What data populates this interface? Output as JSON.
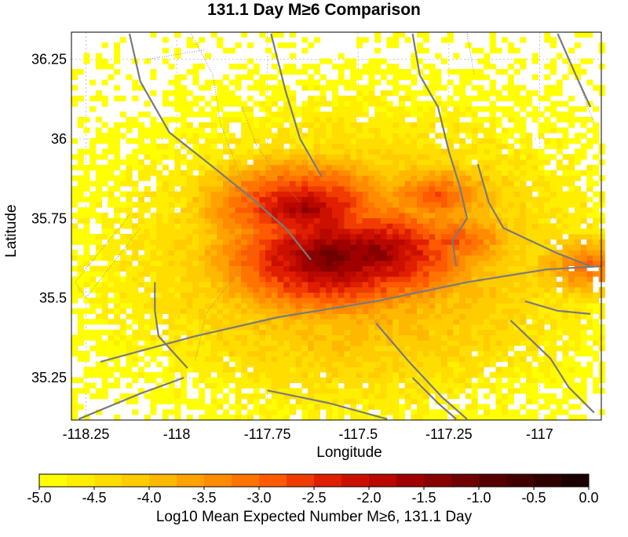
{
  "chart_data": {
    "type": "heatmap",
    "title": "131.1 Day M≥6 Comparison",
    "xlabel": "Longitude",
    "ylabel": "Latitude",
    "xlim": [
      -118.29,
      -116.83
    ],
    "ylim": [
      35.117,
      36.335
    ],
    "xticks": [
      "-118.25",
      "-118",
      "-117.75",
      "-117.5",
      "-117.25",
      "-117"
    ],
    "yticks": [
      "36.25",
      "36",
      "35.75",
      "35.5",
      "35.25"
    ],
    "grid": true,
    "cell_size_deg": 0.0167,
    "colorbar": {
      "label": "Log10 Mean Expected Number M≥6, 131.1 Day",
      "range": [
        -5.0,
        0.0
      ],
      "ticks": [
        "-5.0",
        "-4.5",
        "-4.0",
        "-3.5",
        "-3.0",
        "-2.5",
        "-2.0",
        "-1.5",
        "-1.0",
        "-0.5",
        "0.0"
      ],
      "colors": [
        "#ffff00",
        "#ffee00",
        "#ffdd00",
        "#ffcc00",
        "#ffb800",
        "#ffa200",
        "#ff8c00",
        "#ff7400",
        "#ff5a00",
        "#f03c00",
        "#e01e00",
        "#cc1000",
        "#b80800",
        "#a00000",
        "#880000",
        "#700000",
        "#580000",
        "#420000",
        "#300000",
        "#1c0000"
      ]
    },
    "hotspots": [
      {
        "lon": -117.57,
        "lat": 35.63,
        "value": -1.0
      },
      {
        "lon": -117.46,
        "lat": 35.64,
        "value": -1.3
      },
      {
        "lon": -117.65,
        "lat": 35.78,
        "value": -1.6
      },
      {
        "lon": -117.6,
        "lat": 35.72,
        "value": -1.9
      },
      {
        "lon": -117.52,
        "lat": 35.62,
        "value": -2.0
      },
      {
        "lon": -117.38,
        "lat": 35.58,
        "value": -2.4
      },
      {
        "lon": -117.29,
        "lat": 35.82,
        "value": -2.7
      },
      {
        "lon": -117.25,
        "lat": 35.68,
        "value": -2.6
      },
      {
        "lon": -116.86,
        "lat": 35.6,
        "value": -2.9
      }
    ]
  }
}
